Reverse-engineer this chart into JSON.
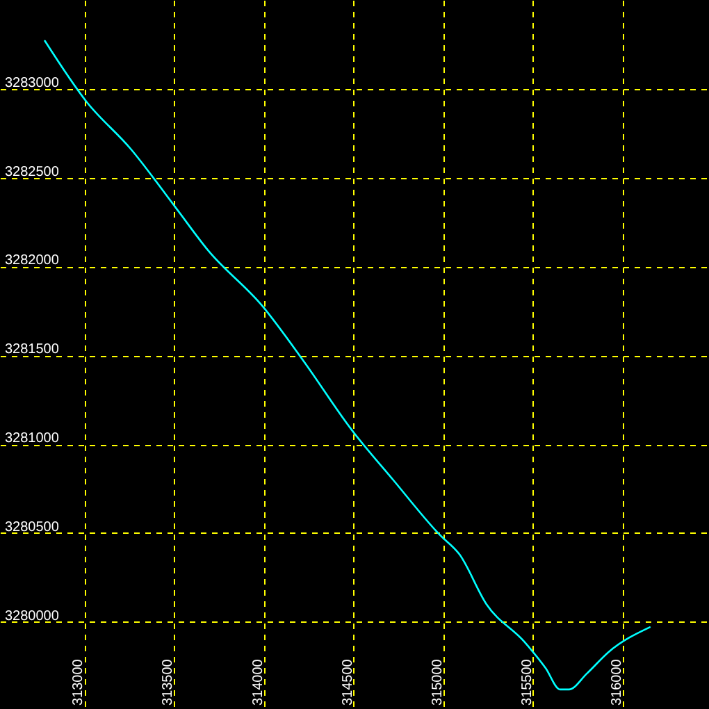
{
  "chart_data": {
    "type": "line",
    "x": [
      312780,
      313010,
      313260,
      313510,
      313690,
      313990,
      314220,
      314490,
      314720,
      314980,
      315090,
      315240,
      315450,
      315570,
      315650,
      315700,
      315800,
      315920,
      316150
    ],
    "series": [
      {
        "color": "#00ffff",
        "values": [
          3283270,
          3282930,
          3282660,
          3282330,
          3282090,
          3281780,
          3281470,
          3281080,
          3280800,
          3280490,
          3280380,
          3280100,
          3279890,
          3279740,
          3279620,
          3279620,
          3279710,
          3279830,
          3279970
        ]
      }
    ],
    "xlim": [
      312530,
      316480
    ],
    "ylim": [
      3279510,
      3283500
    ],
    "xticks": [
      313000,
      313500,
      314000,
      314500,
      315000,
      315500,
      316000
    ],
    "yticks": [
      3280000,
      3280500,
      3281000,
      3281500,
      3282000,
      3282500,
      3283000
    ],
    "grid": true,
    "marker": "none",
    "line_style": "solid"
  }
}
